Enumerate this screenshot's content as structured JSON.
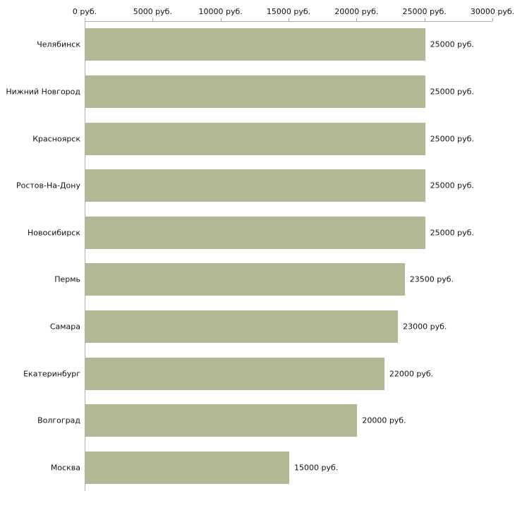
{
  "chart_data": {
    "type": "bar",
    "orientation": "horizontal",
    "categories": [
      "Челябинск",
      "Нижний Новгород",
      "Красноярск",
      "Ростов-На-Дону",
      "Новосибирск",
      "Пермь",
      "Самара",
      "Екатеринбург",
      "Волгоград",
      "Москва"
    ],
    "values": [
      25000,
      25000,
      25000,
      25000,
      25000,
      23500,
      23000,
      22000,
      20000,
      15000
    ],
    "value_labels": [
      "25000 руб.",
      "25000 руб.",
      "25000 руб.",
      "25000 руб.",
      "25000 руб.",
      "23500 руб.",
      "23000 руб.",
      "22000 руб.",
      "20000 руб.",
      "15000 руб."
    ],
    "x_ticks": [
      0,
      5000,
      10000,
      15000,
      20000,
      25000,
      30000
    ],
    "x_tick_labels": [
      "0 руб.",
      "5000 руб.",
      "10000 руб.",
      "15000 руб.",
      "20000 руб.",
      "25000 руб.",
      "30000 руб."
    ],
    "xlim": [
      0,
      30000
    ],
    "unit": "руб.",
    "bar_color": "#b2b896",
    "axis_color": "#b0b0b0",
    "text_color": "#111111",
    "grid": false,
    "legend": false
  }
}
